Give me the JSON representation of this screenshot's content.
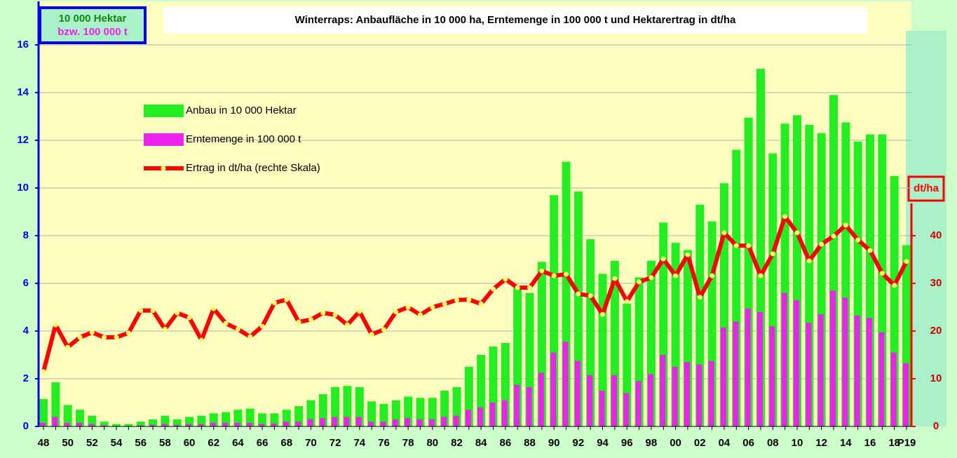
{
  "chart_data": {
    "type": "bar_line",
    "title": "Winterraps: Anbaufläche in 10 000 ha, Erntemenge in 100 000 t und Hektarertrag in dt/ha",
    "ylabel": [
      "10 000 Hektar",
      "bzw. 100 000 t"
    ],
    "y2label": "dt/ha",
    "categories": [
      "48",
      null,
      "50",
      null,
      "52",
      null,
      "54",
      null,
      "56",
      null,
      "58",
      null,
      "60",
      null,
      "62",
      null,
      "64",
      null,
      "66",
      null,
      "68",
      null,
      "70",
      null,
      "72",
      null,
      "74",
      null,
      "76",
      null,
      "78",
      null,
      "80",
      null,
      "82",
      null,
      "84",
      null,
      "86",
      null,
      "88",
      null,
      "90",
      null,
      "92",
      null,
      "94",
      null,
      "96",
      null,
      "98",
      null,
      "00",
      null,
      "02",
      null,
      "04",
      null,
      "06",
      null,
      "08",
      null,
      "10",
      null,
      "12",
      null,
      "14",
      null,
      "16",
      null,
      "18",
      "P19"
    ],
    "series": [
      {
        "name": "Anbau in 10 000 Hektar",
        "type": "bar",
        "color": "#22ee22",
        "values": [
          1.15,
          1.85,
          0.9,
          0.7,
          0.45,
          0.2,
          0.1,
          0.1,
          0.2,
          0.3,
          0.45,
          0.3,
          0.4,
          0.45,
          0.55,
          0.6,
          0.7,
          0.75,
          0.55,
          0.55,
          0.7,
          0.85,
          1.1,
          1.35,
          1.65,
          1.7,
          1.65,
          1.05,
          0.95,
          1.1,
          1.25,
          1.2,
          1.2,
          1.5,
          1.65,
          2.5,
          3.0,
          3.35,
          3.5,
          5.9,
          5.6,
          6.9,
          9.7,
          11.1,
          9.85,
          7.85,
          6.4,
          6.95,
          5.15,
          6.25,
          6.95,
          8.55,
          7.7,
          7.4,
          9.3,
          8.6,
          10.2,
          11.6,
          12.95,
          15.0,
          11.45,
          12.7,
          13.05,
          12.65,
          12.3,
          13.9,
          12.75,
          11.95,
          12.25,
          12.25,
          10.5,
          7.6
        ]
      },
      {
        "name": "Erntemenge in 100 000 t",
        "type": "bar",
        "color": "#ee22ee",
        "values": [
          0.15,
          0.4,
          0.15,
          0.15,
          0.1,
          0.05,
          0.02,
          0.02,
          0.05,
          0.07,
          0.1,
          0.07,
          0.1,
          0.1,
          0.15,
          0.15,
          0.15,
          0.15,
          0.1,
          0.12,
          0.2,
          0.2,
          0.3,
          0.35,
          0.4,
          0.4,
          0.4,
          0.2,
          0.2,
          0.3,
          0.35,
          0.3,
          0.3,
          0.4,
          0.45,
          0.7,
          0.8,
          1.0,
          1.1,
          1.75,
          1.65,
          2.25,
          3.1,
          3.55,
          2.75,
          2.15,
          1.5,
          2.15,
          1.4,
          1.9,
          2.2,
          3.0,
          2.5,
          2.7,
          2.6,
          2.75,
          4.15,
          4.4,
          4.95,
          4.8,
          4.2,
          5.6,
          5.3,
          4.35,
          4.7,
          5.7,
          5.4,
          4.65,
          4.55,
          3.95,
          3.1,
          2.65
        ]
      },
      {
        "name": "Ertrag in dt/ha (rechte Skala)",
        "type": "line",
        "axis": "y2",
        "color": "#ff0000",
        "marker_color": "#ffff66",
        "values": [
          11.5,
          21.3,
          16.6,
          18.7,
          19.7,
          18.7,
          18.7,
          19.6,
          24.3,
          24.3,
          20.4,
          23.8,
          22.8,
          18.1,
          24.7,
          21.6,
          20.4,
          18.8,
          21.0,
          25.9,
          26.6,
          21.9,
          22.4,
          23.8,
          23.4,
          21.3,
          24.1,
          19.3,
          20.3,
          24.0,
          25.0,
          23.4,
          25.0,
          25.7,
          26.5,
          26.6,
          25.7,
          28.8,
          30.9,
          29.1,
          29.1,
          32.6,
          31.6,
          31.9,
          27.8,
          27.4,
          23.5,
          31.0,
          26.2,
          30.3,
          31.2,
          35.1,
          31.6,
          36.0,
          27.1,
          31.6,
          40.6,
          37.9,
          37.9,
          31.6,
          36.2,
          44.0,
          40.6,
          34.7,
          38.2,
          39.9,
          42.2,
          39.1,
          36.9,
          32.1,
          29.6,
          34.6
        ]
      }
    ],
    "ylim": [
      0,
      16
    ],
    "yticks": [
      0,
      2,
      4,
      6,
      8,
      10,
      12,
      14,
      16
    ],
    "y2lim": [
      0,
      80
    ],
    "y2ticks": [
      0,
      10,
      20,
      30,
      40
    ],
    "grid": true
  }
}
